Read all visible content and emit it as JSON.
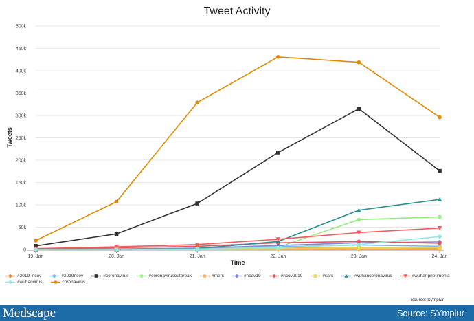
{
  "chart_data": {
    "type": "line",
    "title": "Tweet Activity",
    "xlabel": "Time",
    "ylabel": "Tweets",
    "categories": [
      "19. Jan",
      "20. Jan",
      "21. Jan",
      "22. Jan",
      "23. Jan",
      "24. Jan"
    ],
    "ylim": [
      0,
      500000
    ],
    "yticks": [
      0,
      50000,
      100000,
      150000,
      200000,
      250000,
      300000,
      350000,
      400000,
      450000,
      500000
    ],
    "ytick_labels": [
      "0",
      "50k",
      "100k",
      "150k",
      "200k",
      "250k",
      "300k",
      "350k",
      "400k",
      "450k",
      "500k"
    ],
    "series": [
      {
        "name": "#2019_ncov",
        "color": "#e8862a",
        "marker": "circle",
        "values": [
          0,
          0,
          1000,
          3000,
          5000,
          3000
        ]
      },
      {
        "name": "#2019ncov",
        "color": "#7cb5ec",
        "marker": "circle",
        "values": [
          0,
          1000,
          3000,
          6000,
          10000,
          7000
        ]
      },
      {
        "name": "#coronavirus",
        "color": "#333333",
        "marker": "square",
        "values": [
          8000,
          35000,
          103000,
          217000,
          315000,
          176000
        ]
      },
      {
        "name": "#coronavirusoutbreak",
        "color": "#90ed7d",
        "marker": "circle",
        "values": [
          0,
          0,
          1000,
          5000,
          67000,
          73000
        ]
      },
      {
        "name": "#mers",
        "color": "#f7a35c",
        "marker": "circle",
        "values": [
          0,
          0,
          0,
          1000,
          1000,
          1000
        ]
      },
      {
        "name": "#ncov19",
        "color": "#8085e9",
        "marker": "diamond",
        "values": [
          0,
          1000,
          3000,
          9000,
          15000,
          17000
        ]
      },
      {
        "name": "#ncov2019",
        "color": "#e4545c",
        "marker": "circle",
        "values": [
          1000,
          4000,
          7000,
          15000,
          18000,
          14000
        ]
      },
      {
        "name": "#sars",
        "color": "#e4d354",
        "marker": "square",
        "values": [
          0,
          0,
          1000,
          2000,
          4000,
          4000
        ]
      },
      {
        "name": "#wuhancoronavirus",
        "color": "#2b908f",
        "marker": "triangle",
        "values": [
          0,
          0,
          2000,
          18000,
          88000,
          112000
        ]
      },
      {
        "name": "#wuhanpneumonia",
        "color": "#f45b5b",
        "marker": "triangle-down",
        "values": [
          2000,
          6000,
          11000,
          23000,
          38000,
          48000
        ]
      },
      {
        "name": "#wuhanvirus",
        "color": "#91e8e1",
        "marker": "circle",
        "values": [
          0,
          0,
          1000,
          4000,
          11000,
          29000
        ]
      },
      {
        "name": "coronavirus",
        "color": "#e08a00",
        "marker": "circle",
        "values": [
          20000,
          107000,
          329000,
          431000,
          419000,
          296000
        ]
      }
    ]
  },
  "source_note": "Source: Symplur",
  "footer": {
    "brand": "Medscape",
    "source": "Source: SYmplur"
  }
}
